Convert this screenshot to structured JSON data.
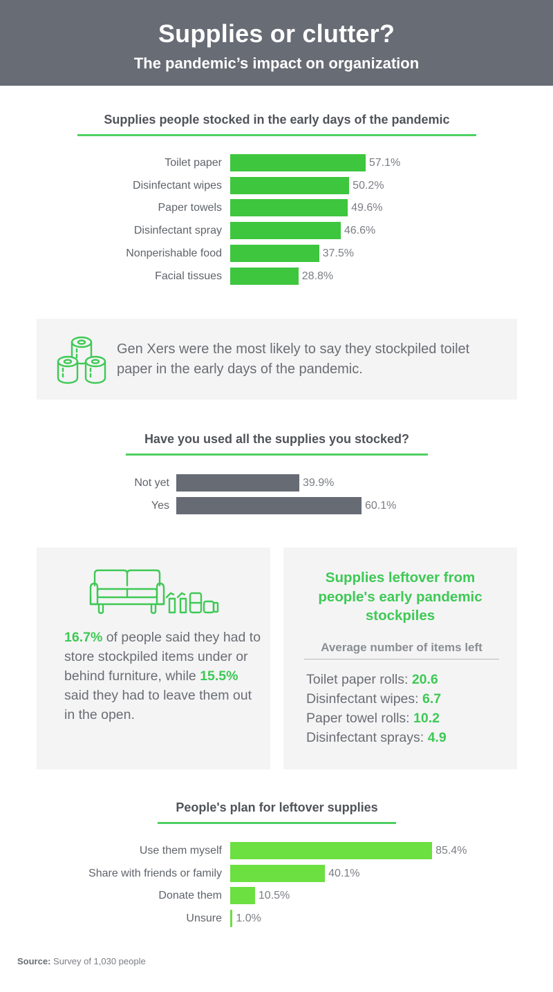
{
  "header": {
    "title": "Supplies or clutter?",
    "subtitle": "The pandemic’s impact on organization"
  },
  "colors": {
    "header_bg": "#676c75",
    "green_bar": "#3ec63e",
    "lime_bar": "#6be040",
    "gray_bar": "#666b74",
    "accent_green": "#3ec954",
    "panel_bg": "#f4f4f5"
  },
  "stocked": {
    "title": "Supplies people stocked in the early days of the pandemic",
    "items": [
      {
        "label": "Toilet paper",
        "value": 57.1,
        "display": "57.1%"
      },
      {
        "label": "Disinfectant wipes",
        "value": 50.2,
        "display": "50.2%"
      },
      {
        "label": "Paper towels",
        "value": 49.6,
        "display": "49.6%"
      },
      {
        "label": "Disinfectant spray",
        "value": 46.6,
        "display": "46.6%"
      },
      {
        "label": "Nonperishable food",
        "value": 37.5,
        "display": "37.5%"
      },
      {
        "label": "Facial tissues",
        "value": 28.8,
        "display": "28.8%"
      }
    ]
  },
  "callout": {
    "icon": "toilet-paper-rolls-icon",
    "text": "Gen Xers were the most likely to say they stockpiled toilet paper in the early days of the pandemic."
  },
  "used_all": {
    "title": "Have you used all the supplies you stocked?",
    "items": [
      {
        "label": "Not yet",
        "value": 39.9,
        "display": "39.9%"
      },
      {
        "label": "Yes",
        "value": 60.1,
        "display": "60.1%"
      }
    ]
  },
  "storage": {
    "icon": "couch-with-supplies-icon",
    "stat1": "16.7%",
    "text1": " of people said they had to store stockpiled items under or behind furniture, while ",
    "stat2": "15.5%",
    "text2": " said they had to leave them out in the open."
  },
  "leftover": {
    "title": "Supplies leftover from people's early pandemic stockpiles",
    "subtitle": "Average number of items left",
    "items": [
      {
        "label": "Toilet paper rolls: ",
        "value": "20.6"
      },
      {
        "label": "Disinfectant wipes: ",
        "value": "6.7"
      },
      {
        "label": "Paper towel rolls: ",
        "value": "10.2"
      },
      {
        "label": "Disinfectant sprays: ",
        "value": "4.9"
      }
    ]
  },
  "plan": {
    "title": "People's plan for leftover supplies",
    "items": [
      {
        "label": "Use them myself",
        "value": 85.4,
        "display": "85.4%"
      },
      {
        "label": "Share with friends or family",
        "value": 40.1,
        "display": "40.1%"
      },
      {
        "label": "Donate them",
        "value": 10.5,
        "display": "10.5%"
      },
      {
        "label": "Unsure",
        "value": 1.0,
        "display": "1.0%"
      }
    ]
  },
  "source": {
    "label": "Source:",
    "text": " Survey of 1,030 people"
  },
  "chart_data": [
    {
      "type": "bar",
      "orientation": "horizontal",
      "title": "Supplies people stocked in the early days of the pandemic",
      "categories": [
        "Toilet paper",
        "Disinfectant wipes",
        "Paper towels",
        "Disinfectant spray",
        "Nonperishable food",
        "Facial tissues"
      ],
      "values": [
        57.1,
        50.2,
        49.6,
        46.6,
        37.5,
        28.8
      ],
      "unit": "%",
      "xlabel": "",
      "ylabel": "",
      "grid": false
    },
    {
      "type": "bar",
      "orientation": "horizontal",
      "title": "Have you used all the supplies you stocked?",
      "categories": [
        "Not yet",
        "Yes"
      ],
      "values": [
        39.9,
        60.1
      ],
      "unit": "%",
      "grid": false
    },
    {
      "type": "table",
      "title": "Supplies leftover from people's early pandemic stockpiles",
      "subtitle": "Average number of items left",
      "categories": [
        "Toilet paper rolls",
        "Disinfectant wipes",
        "Paper towel rolls",
        "Disinfectant sprays"
      ],
      "values": [
        20.6,
        6.7,
        10.2,
        4.9
      ]
    },
    {
      "type": "bar",
      "orientation": "horizontal",
      "title": "People's plan for leftover supplies",
      "categories": [
        "Use them myself",
        "Share with friends or family",
        "Donate them",
        "Unsure"
      ],
      "values": [
        85.4,
        40.1,
        10.5,
        1.0
      ],
      "unit": "%",
      "grid": false
    }
  ]
}
